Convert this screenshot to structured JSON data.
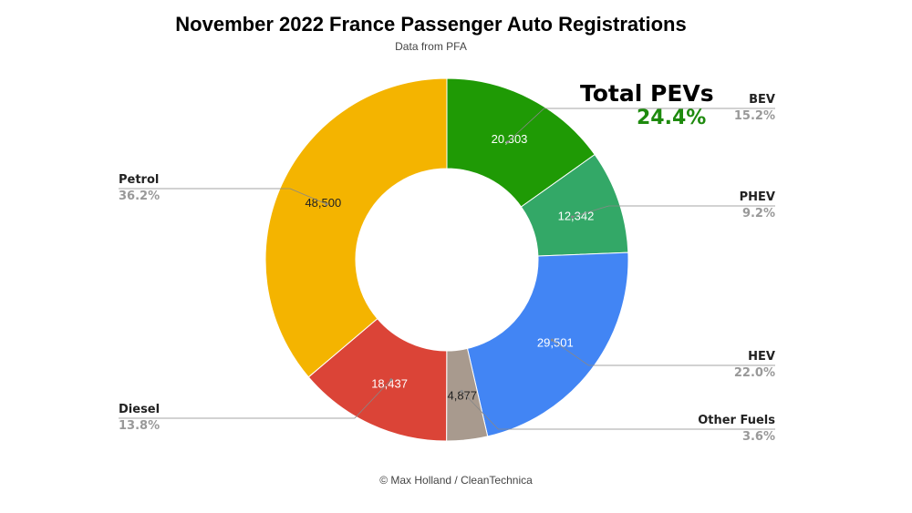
{
  "title": "November 2022 France Passenger Auto Registrations",
  "subtitle": "Data from PFA",
  "annotation": {
    "label": "Total PEVs",
    "value": "24.4%",
    "color": "#1e8a0e"
  },
  "credit": "© Max Holland / CleanTechnica",
  "chart_data": {
    "type": "pie",
    "donut": true,
    "title": "November 2022 France Passenger Auto Registrations",
    "subtitle": "Data from PFA",
    "slices": [
      {
        "name": "BEV",
        "value": 20303,
        "value_label": "20,303",
        "percent": "15.2%",
        "color": "#1f9a05"
      },
      {
        "name": "PHEV",
        "value": 12342,
        "value_label": "12,342",
        "percent": "9.2%",
        "color": "#33a867"
      },
      {
        "name": "HEV",
        "value": 29501,
        "value_label": "29,501",
        "percent": "22.0%",
        "color": "#4285f4"
      },
      {
        "name": "Other Fuels",
        "value": 4877,
        "value_label": "4,877",
        "percent": "3.6%",
        "color": "#a89a8e"
      },
      {
        "name": "Diesel",
        "value": 18437,
        "value_label": "18,437",
        "percent": "13.8%",
        "color": "#db4437"
      },
      {
        "name": "Petrol",
        "value": 48500,
        "value_label": "48,500",
        "percent": "36.2%",
        "color": "#f4b400"
      }
    ]
  }
}
